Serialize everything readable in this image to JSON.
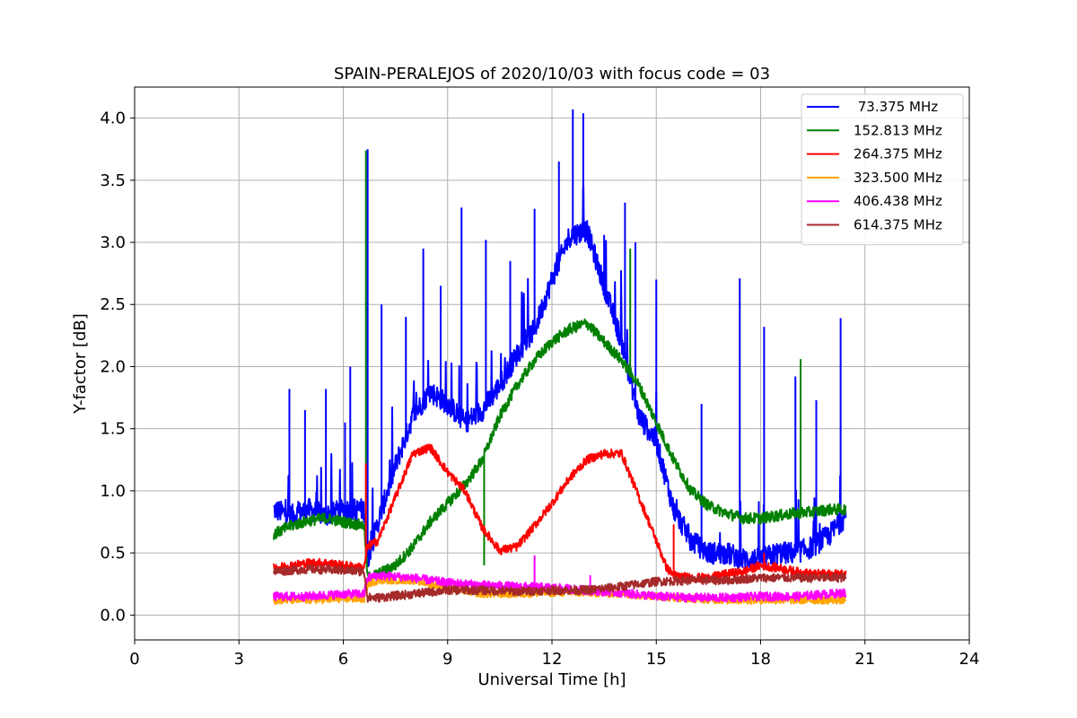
{
  "chart_data": {
    "type": "line",
    "title": "SPAIN-PERALEJOS of 2020/10/03 with focus code = 03",
    "xlabel": "Universal Time [h]",
    "ylabel": "Y-factor [dB]",
    "xlim": [
      0,
      24
    ],
    "ylim": [
      -0.2,
      4.25
    ],
    "xticks": [
      0,
      3,
      6,
      9,
      12,
      15,
      18,
      21,
      24
    ],
    "xtick_labels": [
      "0",
      "3",
      "6",
      "9",
      "12",
      "15",
      "18",
      "21",
      "24"
    ],
    "yticks": [
      0.0,
      0.5,
      1.0,
      1.5,
      2.0,
      2.5,
      3.0,
      3.5,
      4.0
    ],
    "ytick_labels": [
      "0.0",
      "0.5",
      "1.0",
      "1.5",
      "2.0",
      "2.5",
      "3.0",
      "3.5",
      "4.0"
    ],
    "grid": true,
    "legend_position": "top-right",
    "series": [
      {
        "name": " 73.375 MHz",
        "color": "#0000ff",
        "noise": 0.09,
        "x": [
          4.0,
          4.5,
          5.0,
          5.5,
          6.0,
          6.6,
          6.7,
          7.0,
          7.5,
          8.0,
          8.5,
          9.0,
          9.5,
          10.0,
          10.5,
          11.0,
          11.5,
          12.0,
          12.5,
          13.0,
          13.5,
          14.0,
          14.5,
          15.0,
          15.5,
          16.0,
          16.5,
          17.0,
          17.5,
          18.0,
          18.5,
          19.0,
          19.5,
          20.0,
          20.45
        ],
        "y": [
          0.85,
          0.8,
          0.85,
          0.8,
          0.85,
          0.85,
          0.45,
          0.75,
          1.2,
          1.6,
          1.8,
          1.7,
          1.55,
          1.65,
          1.85,
          2.1,
          2.3,
          2.7,
          3.05,
          3.1,
          2.65,
          2.2,
          1.6,
          1.4,
          0.85,
          0.6,
          0.5,
          0.5,
          0.45,
          0.45,
          0.5,
          0.5,
          0.55,
          0.65,
          0.8
        ],
        "spikes": [
          [
            4.45,
            1.82
          ],
          [
            4.9,
            1.65
          ],
          [
            5.5,
            1.82
          ],
          [
            6.05,
            1.55
          ],
          [
            6.2,
            2.0
          ],
          [
            6.7,
            3.75
          ],
          [
            7.1,
            2.5
          ],
          [
            7.8,
            2.4
          ],
          [
            8.3,
            2.95
          ],
          [
            8.8,
            2.65
          ],
          [
            9.4,
            3.28
          ],
          [
            10.1,
            3.02
          ],
          [
            10.8,
            2.85
          ],
          [
            11.5,
            3.27
          ],
          [
            12.2,
            3.65
          ],
          [
            12.6,
            4.07
          ],
          [
            12.9,
            4.04
          ],
          [
            13.5,
            3.06
          ],
          [
            14.1,
            3.32
          ],
          [
            14.4,
            3.0
          ],
          [
            15.0,
            2.7
          ],
          [
            16.3,
            1.7
          ],
          [
            17.4,
            2.71
          ],
          [
            18.1,
            2.32
          ],
          [
            19.0,
            1.92
          ],
          [
            19.6,
            1.73
          ],
          [
            20.3,
            2.39
          ]
        ]
      },
      {
        "name": "152.813 MHz",
        "color": "#008000",
        "noise": 0.045,
        "x": [
          4.0,
          4.5,
          5.0,
          5.5,
          6.0,
          6.6,
          6.7,
          7.0,
          7.5,
          8.0,
          8.5,
          9.0,
          9.5,
          10.0,
          10.5,
          11.0,
          11.5,
          12.0,
          12.5,
          13.0,
          13.5,
          14.0,
          14.5,
          15.0,
          15.5,
          16.0,
          16.5,
          17.0,
          17.5,
          18.0,
          18.5,
          19.0,
          19.5,
          20.0,
          20.45
        ],
        "y": [
          0.65,
          0.72,
          0.76,
          0.78,
          0.75,
          0.72,
          0.3,
          0.33,
          0.4,
          0.55,
          0.75,
          0.9,
          1.05,
          1.25,
          1.6,
          1.85,
          2.05,
          2.2,
          2.3,
          2.35,
          2.2,
          2.05,
          1.85,
          1.55,
          1.25,
          1.0,
          0.88,
          0.82,
          0.78,
          0.78,
          0.8,
          0.82,
          0.83,
          0.85,
          0.85
        ],
        "spikes": [
          [
            6.65,
            3.74
          ],
          [
            10.05,
            0.4
          ],
          [
            14.25,
            2.95
          ],
          [
            19.15,
            2.06
          ]
        ]
      },
      {
        "name": "264.375 MHz",
        "color": "#ff0000",
        "noise": 0.035,
        "x": [
          4.0,
          4.5,
          5.0,
          5.5,
          6.0,
          6.6,
          6.7,
          7.0,
          7.5,
          8.0,
          8.5,
          9.0,
          9.5,
          10.0,
          10.5,
          11.0,
          11.5,
          12.0,
          12.5,
          13.0,
          13.5,
          14.0,
          14.5,
          15.0,
          15.3,
          15.5,
          16.0,
          16.5,
          17.0,
          17.5,
          18.0,
          18.5,
          19.0,
          19.5,
          20.0,
          20.45
        ],
        "y": [
          0.38,
          0.4,
          0.42,
          0.42,
          0.4,
          0.38,
          0.55,
          0.6,
          0.95,
          1.3,
          1.35,
          1.15,
          1.0,
          0.7,
          0.52,
          0.55,
          0.72,
          0.9,
          1.1,
          1.25,
          1.3,
          1.3,
          0.95,
          0.6,
          0.38,
          0.32,
          0.3,
          0.3,
          0.33,
          0.35,
          0.4,
          0.38,
          0.35,
          0.33,
          0.33,
          0.33
        ],
        "spikes": [
          [
            6.65,
            1.22
          ],
          [
            15.5,
            0.73
          ],
          [
            18.1,
            0.5
          ]
        ]
      },
      {
        "name": "323.500 MHz",
        "color": "#ffa500",
        "noise": 0.03,
        "x": [
          4.0,
          5.0,
          6.0,
          6.6,
          6.7,
          7.0,
          8.0,
          9.0,
          10.0,
          11.0,
          12.0,
          13.0,
          14.0,
          15.0,
          16.0,
          17.0,
          18.0,
          19.0,
          20.0,
          20.45
        ],
        "y": [
          0.12,
          0.12,
          0.13,
          0.13,
          0.25,
          0.28,
          0.28,
          0.22,
          0.17,
          0.17,
          0.18,
          0.18,
          0.17,
          0.15,
          0.13,
          0.12,
          0.12,
          0.12,
          0.12,
          0.12
        ],
        "spikes": []
      },
      {
        "name": "406.438 MHz",
        "color": "#ff00ff",
        "noise": 0.035,
        "x": [
          4.0,
          5.0,
          6.0,
          6.6,
          6.7,
          7.0,
          8.0,
          9.0,
          10.0,
          11.0,
          12.0,
          13.0,
          14.0,
          15.0,
          16.0,
          17.0,
          18.0,
          19.0,
          20.0,
          20.45
        ],
        "y": [
          0.15,
          0.15,
          0.17,
          0.17,
          0.3,
          0.32,
          0.3,
          0.26,
          0.24,
          0.23,
          0.22,
          0.2,
          0.18,
          0.15,
          0.14,
          0.14,
          0.15,
          0.15,
          0.17,
          0.18
        ],
        "spikes": [
          [
            11.5,
            0.48
          ],
          [
            13.1,
            0.32
          ]
        ]
      },
      {
        "name": "614.375 MHz",
        "color": "#a52a2a",
        "noise": 0.035,
        "x": [
          4.0,
          5.0,
          6.0,
          6.6,
          6.7,
          7.0,
          8.0,
          9.0,
          10.0,
          11.0,
          12.0,
          13.0,
          14.0,
          15.0,
          16.0,
          17.0,
          18.0,
          19.0,
          20.0,
          20.45
        ],
        "y": [
          0.35,
          0.37,
          0.36,
          0.35,
          0.14,
          0.14,
          0.17,
          0.2,
          0.2,
          0.19,
          0.2,
          0.2,
          0.23,
          0.27,
          0.28,
          0.28,
          0.3,
          0.3,
          0.3,
          0.3
        ],
        "spikes": []
      }
    ]
  }
}
